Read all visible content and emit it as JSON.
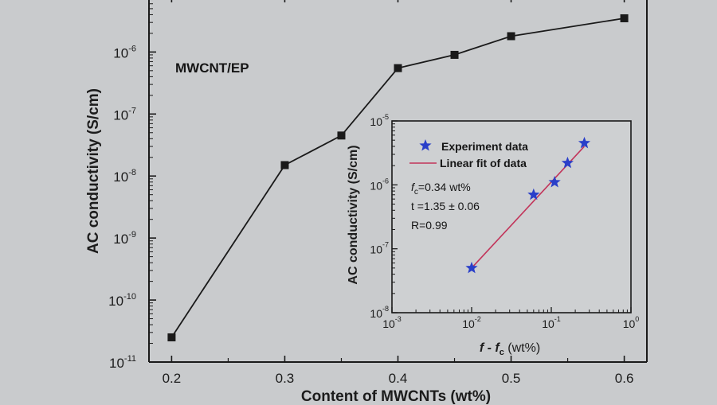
{
  "chart_data": [
    {
      "type": "line",
      "title": "",
      "annotation": "MWCNT/EP",
      "xlabel": "Content of MWCNTs (wt%)",
      "ylabel": "AC conductivity (S/cm)",
      "x_scale": "linear",
      "y_scale": "log",
      "xlim": [
        0.18,
        0.62
      ],
      "ylim": [
        1e-11,
        8e-06
      ],
      "x_ticks": [
        0.2,
        0.3,
        0.4,
        0.5,
        0.6
      ],
      "x_tick_labels": [
        "0.2",
        "0.3",
        "0.4",
        "0.5",
        "0.6"
      ],
      "y_ticks": [
        1e-11,
        1e-10,
        1e-09,
        1e-08,
        1e-07,
        1e-06
      ],
      "y_tick_labels": [
        {
          "base": "10",
          "exp": "-11"
        },
        {
          "base": "10",
          "exp": "-10"
        },
        {
          "base": "10",
          "exp": "-9"
        },
        {
          "base": "10",
          "exp": "-8"
        },
        {
          "base": "10",
          "exp": "-7"
        },
        {
          "base": "10",
          "exp": "-6"
        }
      ],
      "marker": "square",
      "series": [
        {
          "x": [
            0.2,
            0.3,
            0.35,
            0.4,
            0.45,
            0.5,
            0.6
          ],
          "y": [
            2.5e-11,
            1.5e-08,
            4.5e-08,
            5.5e-07,
            9e-07,
            1.8e-06,
            3.5e-06
          ]
        }
      ],
      "color": "#1a1a1a"
    },
    {
      "type": "scatter",
      "inset": true,
      "xlabel_main": "f - f",
      "xlabel_sub": "c",
      "xlabel_unit": " (wt%)",
      "ylabel": "AC conductivity (S/cm)",
      "x_scale": "log",
      "y_scale": "log",
      "xlim": [
        0.001,
        1
      ],
      "ylim": [
        1e-08,
        1e-05
      ],
      "x_ticks": [
        0.001,
        0.01,
        0.1,
        1
      ],
      "x_tick_labels": [
        {
          "base": "10",
          "exp": "-3"
        },
        {
          "base": "10",
          "exp": "-2"
        },
        {
          "base": "10",
          "exp": "-1"
        },
        {
          "base": "10",
          "exp": "0"
        }
      ],
      "y_ticks": [
        1e-08,
        1e-07,
        1e-06,
        1e-05
      ],
      "y_tick_labels": [
        {
          "base": "10",
          "exp": "-8"
        },
        {
          "base": "10",
          "exp": "-7"
        },
        {
          "base": "10",
          "exp": "-6"
        },
        {
          "base": "10",
          "exp": "-5"
        }
      ],
      "series": [
        {
          "name": "Experiment data",
          "marker": "star",
          "color": "#2a3fc9",
          "x": [
            0.01,
            0.06,
            0.11,
            0.16,
            0.26
          ],
          "y": [
            5e-08,
            7e-07,
            1.1e-06,
            2.2e-06,
            4.5e-06
          ]
        },
        {
          "name": "Linear fit of data",
          "type": "line",
          "color": "#c2345a",
          "x": [
            0.01,
            0.26
          ],
          "y": [
            5e-08,
            4e-06
          ]
        }
      ],
      "legend_position": "top-left",
      "annotations": {
        "fc_symbol": "f",
        "fc_sub": "c",
        "fc_value": "=0.34 wt%",
        "t": "t =1.35 ± 0.06",
        "R": "R=0.99"
      }
    }
  ]
}
